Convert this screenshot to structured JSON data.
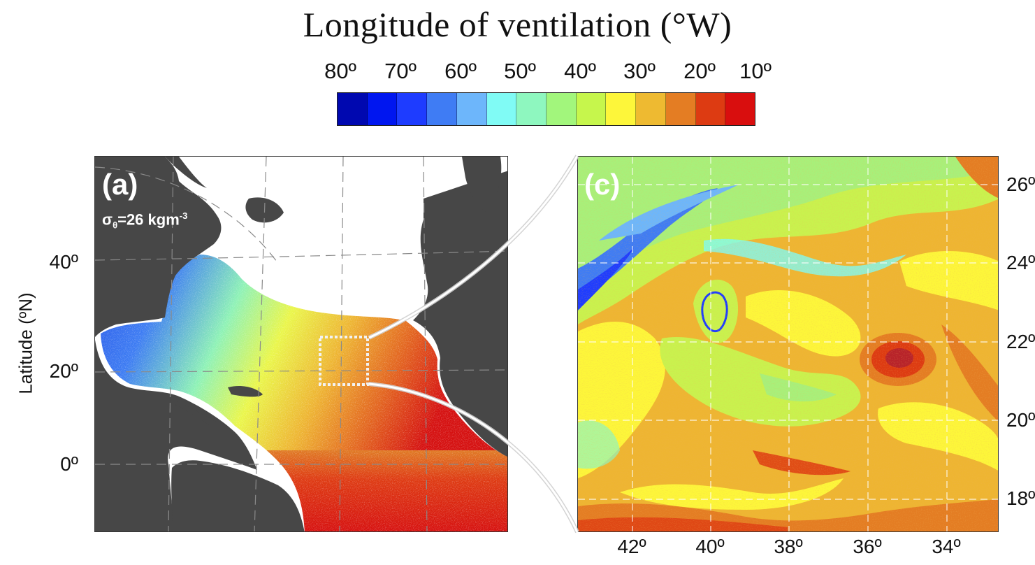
{
  "figure": {
    "title": "Longitude of ventilation (°W)",
    "colorbar": {
      "labels": [
        "80º",
        "70º",
        "60º",
        "50º",
        "40º",
        "30º",
        "20º",
        "10º"
      ],
      "colors": [
        "#0008b0",
        "#0016f0",
        "#1e3cff",
        "#3f7cf4",
        "#6db6fb",
        "#80fbf5",
        "#8ef7bf",
        "#a2f67c",
        "#c6f64c",
        "#fdf63a",
        "#eeba31",
        "#e47d23",
        "#dd3b12",
        "#d90e0e"
      ]
    },
    "panel_a": {
      "label": "(a)",
      "density_base": "σ",
      "density_sub": "θ",
      "density_value": "=26 kgm",
      "density_sup": "-3",
      "ylabel": "Latitude (ºN)",
      "yticks": [
        "40º",
        "20º",
        "0º"
      ]
    },
    "panel_c": {
      "label": "(c)",
      "yticks": [
        "26º",
        "24º",
        "22º",
        "20º",
        "18º"
      ],
      "xticks": [
        "42º",
        "40º",
        "38º",
        "36º",
        "34º"
      ]
    }
  }
}
